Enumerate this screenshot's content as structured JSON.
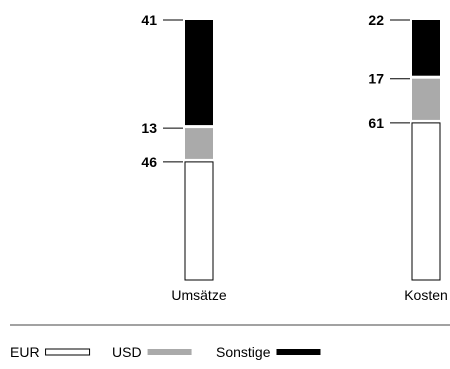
{
  "chart_data": {
    "type": "bar",
    "stacked": true,
    "normalized": true,
    "value_unit": "%",
    "categories": [
      "Umsätze",
      "Kosten"
    ],
    "series": [
      {
        "name": "EUR",
        "values": [
          46,
          61
        ],
        "color": "#ffffff"
      },
      {
        "name": "USD",
        "values": [
          13,
          17
        ],
        "color": "#aaaaaa"
      },
      {
        "name": "Sonstige",
        "values": [
          41,
          22
        ],
        "color": "#000000"
      }
    ],
    "ylim": [
      0,
      100
    ],
    "legend_position": "bottom-left",
    "grid": false
  }
}
